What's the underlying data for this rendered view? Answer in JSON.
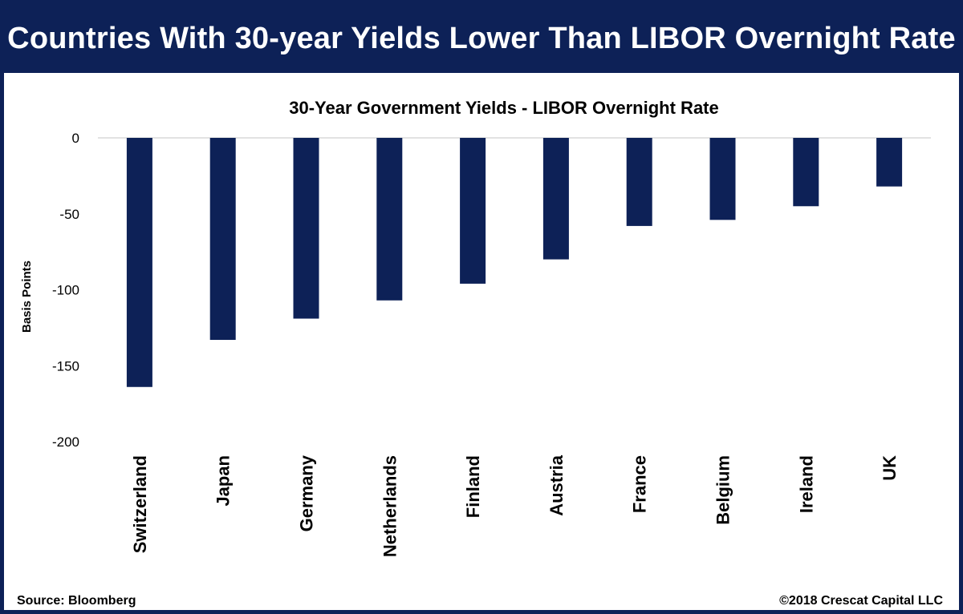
{
  "banner": {
    "title": "Countries With 30-year Yields Lower Than LIBOR Overnight Rate"
  },
  "colors": {
    "brand": "#0d2157",
    "bar": "#0d2157",
    "gridline": "#d9d9d9"
  },
  "chart_data": {
    "type": "bar",
    "title": "30-Year Government Yields - LIBOR Overnight Rate",
    "xlabel": "",
    "ylabel": "Basis Points",
    "ylim": [
      -200,
      0
    ],
    "yticks": [
      0,
      -50,
      -100,
      -150,
      -200
    ],
    "grid": "zero line only",
    "categories": [
      "Switzerland",
      "Japan",
      "Germany",
      "Netherlands",
      "Finland",
      "Austria",
      "France",
      "Belgium",
      "Ireland",
      "UK"
    ],
    "values": [
      -164,
      -133,
      -119,
      -107,
      -96,
      -80,
      -58,
      -54,
      -45,
      -32
    ]
  },
  "footer": {
    "source": "Source: Bloomberg",
    "copyright": "©2018 Crescat Capital LLC"
  }
}
